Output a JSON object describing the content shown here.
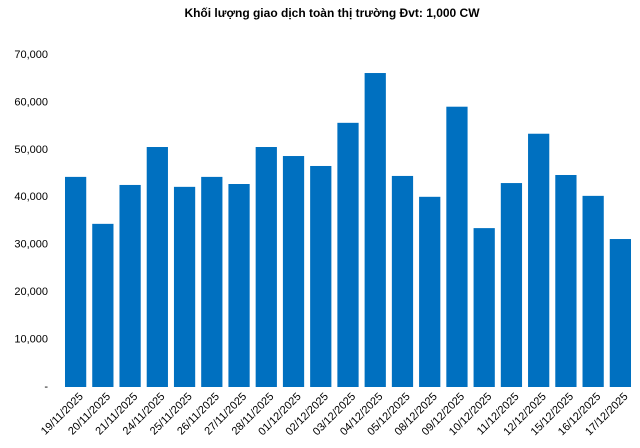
{
  "chart_data": {
    "type": "bar",
    "title": "Khối lượng giao dịch toàn thị trường Đvt: 1,000 CW",
    "categories": [
      "19/11/2025",
      "20/11/2025",
      "21/11/2025",
      "24/11/2025",
      "25/11/2025",
      "26/11/2025",
      "27/11/2025",
      "28/11/2025",
      "01/12/2025",
      "02/12/2025",
      "03/12/2025",
      "04/12/2025",
      "05/12/2025",
      "08/12/2025",
      "09/12/2025",
      "10/12/2025",
      "11/12/2025",
      "12/12/2025",
      "15/12/2025",
      "16/12/2025",
      "17/12/2025"
    ],
    "values": [
      44300,
      34400,
      42600,
      50600,
      42200,
      44300,
      42800,
      50600,
      48700,
      46600,
      55700,
      66200,
      44500,
      40100,
      59100,
      33500,
      43000,
      53400,
      44700,
      40300,
      31200
    ],
    "color": "#0070c0",
    "ylim": [
      0,
      70000
    ],
    "yticks": [
      {
        "value": 0,
        "label": "-"
      },
      {
        "value": 10000,
        "label": "10,000"
      },
      {
        "value": 20000,
        "label": "20,000"
      },
      {
        "value": 30000,
        "label": "30,000"
      },
      {
        "value": 40000,
        "label": "40,000"
      },
      {
        "value": 50000,
        "label": "50,000"
      },
      {
        "value": 60000,
        "label": "60,000"
      },
      {
        "value": 70000,
        "label": "70,000"
      }
    ],
    "grid": false
  }
}
